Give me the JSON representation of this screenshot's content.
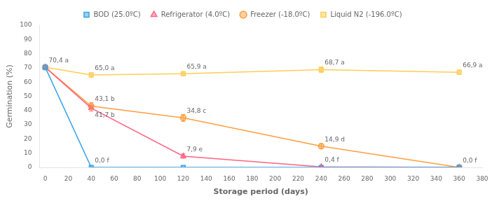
{
  "chart_data": {
    "type": "line",
    "xlabel": "Storage period (days)",
    "ylabel": "Germination (%)",
    "x": [
      0,
      40,
      120,
      240,
      360
    ],
    "series": [
      {
        "name": "BOD (25.0ºC)",
        "values": [
          70.4,
          0.0,
          0.0,
          0.0,
          0.0
        ],
        "errors": [
          0,
          0,
          0,
          0,
          0
        ],
        "marker": "square"
      },
      {
        "name": "Refrigerator (4.0ºC)",
        "values": [
          70.4,
          41.7,
          7.9,
          0.4,
          0.0
        ],
        "errors": [
          0,
          2.0,
          1.5,
          0.5,
          0
        ],
        "marker": "triangle"
      },
      {
        "name": "Freezer (-18.0ºC)",
        "values": [
          70.4,
          43.1,
          34.8,
          14.9,
          0.0
        ],
        "errors": [
          0,
          2.5,
          2.5,
          1.5,
          0
        ],
        "marker": "circle"
      },
      {
        "name": "Liquid N2 (-196.0ºC)",
        "values": [
          70.4,
          65.0,
          65.9,
          68.7,
          66.9
        ],
        "errors": [
          0,
          1.5,
          1.5,
          2.0,
          1.5
        ],
        "marker": "square"
      }
    ],
    "xlim": [
      -5,
      380
    ],
    "xticks": [
      0,
      20,
      40,
      60,
      80,
      100,
      120,
      140,
      160,
      180,
      200,
      220,
      240,
      260,
      280,
      300,
      320,
      340,
      360,
      380
    ],
    "ylim": [
      0,
      100
    ],
    "yticks": [
      0,
      10,
      20,
      30,
      40,
      50,
      60,
      70,
      80,
      90,
      100
    ],
    "grid": false,
    "legend": "top",
    "annotations": [
      {
        "text": "70,4 a",
        "x": 0,
        "y": 70.4
      },
      {
        "text": "0,0 f",
        "x": 40,
        "y": 0.0
      },
      {
        "text": "0,0 f",
        "x": 360,
        "y": 0.0
      },
      {
        "text": "41,7 b",
        "x": 40,
        "y": 41.7
      },
      {
        "text": "7,9 e",
        "x": 120,
        "y": 7.9
      },
      {
        "text": "0,4 f",
        "x": 240,
        "y": 0.4
      },
      {
        "text": "43,1 b",
        "x": 40,
        "y": 43.1
      },
      {
        "text": "34,8 c",
        "x": 120,
        "y": 34.8
      },
      {
        "text": "14,9 d",
        "x": 240,
        "y": 14.9
      },
      {
        "text": "65,0 a",
        "x": 40,
        "y": 65.0
      },
      {
        "text": "65,9 a",
        "x": 120,
        "y": 65.9
      },
      {
        "text": "68,7 a",
        "x": 240,
        "y": 68.7
      },
      {
        "text": "66,9 a",
        "x": 360,
        "y": 66.9
      }
    ]
  }
}
